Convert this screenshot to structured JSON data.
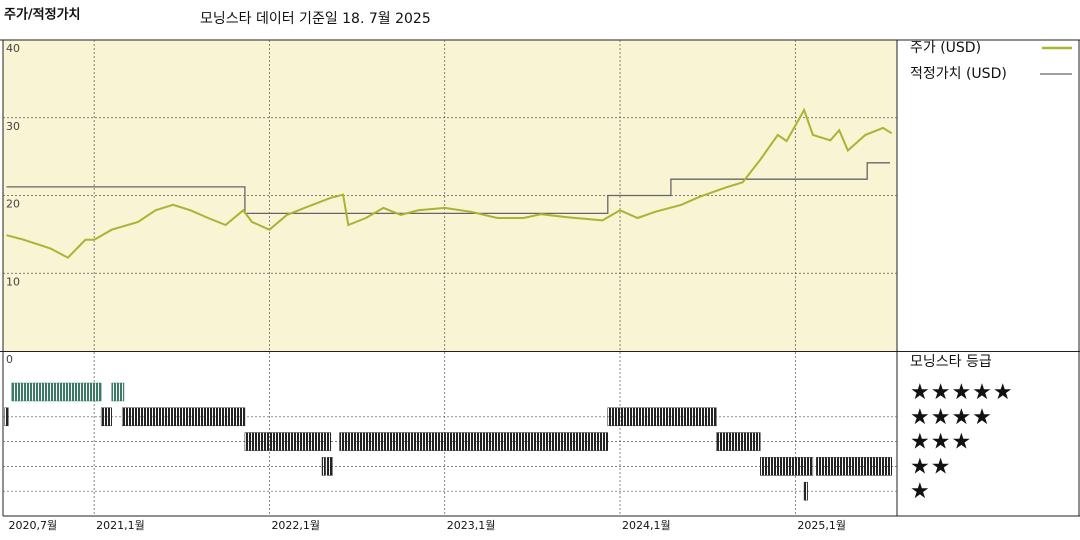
{
  "chart_data": [
    {
      "type": "line",
      "title": "주가/적정가치",
      "subtitle": "모닝스타 데이터 기준일 18. 7월 2025",
      "xlim": [
        2020.48,
        2025.58
      ],
      "xticks": [
        {
          "value": 2020.5,
          "label": "2020,7월"
        },
        {
          "value": 2021,
          "label": "2021,1월"
        },
        {
          "value": 2022,
          "label": "2022,1월"
        },
        {
          "value": 2023,
          "label": "2023,1월"
        },
        {
          "value": 2024,
          "label": "2024,1월"
        },
        {
          "value": 2025,
          "label": "2025,1월"
        }
      ],
      "ylim": [
        0,
        40
      ],
      "yticks": [
        0,
        10,
        20,
        30,
        40
      ],
      "grid": true,
      "background": "#f8f4d4",
      "series": [
        {
          "name": "주가 (USD)",
          "color": "#a9b530",
          "x": [
            2020.5,
            2020.6,
            2020.75,
            2020.85,
            2020.95,
            2021.0,
            2021.1,
            2021.25,
            2021.35,
            2021.45,
            2021.55,
            2021.65,
            2021.75,
            2021.85,
            2021.9,
            2022.0,
            2022.1,
            2022.2,
            2022.35,
            2022.42,
            2022.45,
            2022.55,
            2022.65,
            2022.75,
            2022.85,
            2023.0,
            2023.15,
            2023.3,
            2023.45,
            2023.55,
            2023.7,
            2023.9,
            2024.0,
            2024.1,
            2024.2,
            2024.35,
            2024.45,
            2024.6,
            2024.7,
            2024.8,
            2024.9,
            2024.95,
            2025.05,
            2025.1,
            2025.2,
            2025.25,
            2025.3,
            2025.4,
            2025.5,
            2025.55
          ],
          "values": [
            14.9,
            14.3,
            13.2,
            12.0,
            14.3,
            14.3,
            15.6,
            16.6,
            18.1,
            18.8,
            18.1,
            17.1,
            16.2,
            18.1,
            16.6,
            15.6,
            17.5,
            18.4,
            19.7,
            20.1,
            16.2,
            17.1,
            18.4,
            17.5,
            18.1,
            18.4,
            17.9,
            17.1,
            17.1,
            17.6,
            17.2,
            16.8,
            18.1,
            17.1,
            17.9,
            18.8,
            19.8,
            21.0,
            21.7,
            24.6,
            27.8,
            27.0,
            31.0,
            27.8,
            27.1,
            28.4,
            25.8,
            27.8,
            28.7,
            28.0
          ]
        },
        {
          "name": "적정가치 (USD)",
          "color": "#666666",
          "x": [
            2020.5,
            2021.86,
            2021.86,
            2023.93,
            2023.93,
            2024.29,
            2024.29,
            2025.41,
            2025.41,
            2025.54
          ],
          "values": [
            21.1,
            21.1,
            17.7,
            17.7,
            20.0,
            20.0,
            22.1,
            22.1,
            24.2,
            24.2
          ]
        }
      ]
    },
    {
      "type": "range",
      "title": "모닝스타 등급",
      "rows": [
        {
          "label": "★★★★★",
          "color": "#3a7c63",
          "periods": [
            [
              2020.53,
              2021.04
            ],
            [
              2021.1,
              2021.17
            ]
          ]
        },
        {
          "label": "★★★★",
          "color": "#222222",
          "periods": [
            [
              2020.49,
              2020.51
            ],
            [
              2021.04,
              2021.1
            ],
            [
              2021.16,
              2021.86
            ],
            [
              2023.93,
              2024.55
            ]
          ]
        },
        {
          "label": "★★★",
          "color": "#222222",
          "periods": [
            [
              2021.86,
              2022.35
            ],
            [
              2022.4,
              2023.93
            ],
            [
              2024.55,
              2024.8
            ]
          ]
        },
        {
          "label": "★★",
          "color": "#222222",
          "periods": [
            [
              2022.3,
              2022.32
            ],
            [
              2022.33,
              2022.36
            ],
            [
              2024.8,
              2025.1
            ],
            [
              2025.12,
              2025.55
            ]
          ]
        },
        {
          "label": "★",
          "color": "#222222",
          "periods": [
            [
              2025.05,
              2025.07
            ]
          ]
        }
      ]
    }
  ]
}
